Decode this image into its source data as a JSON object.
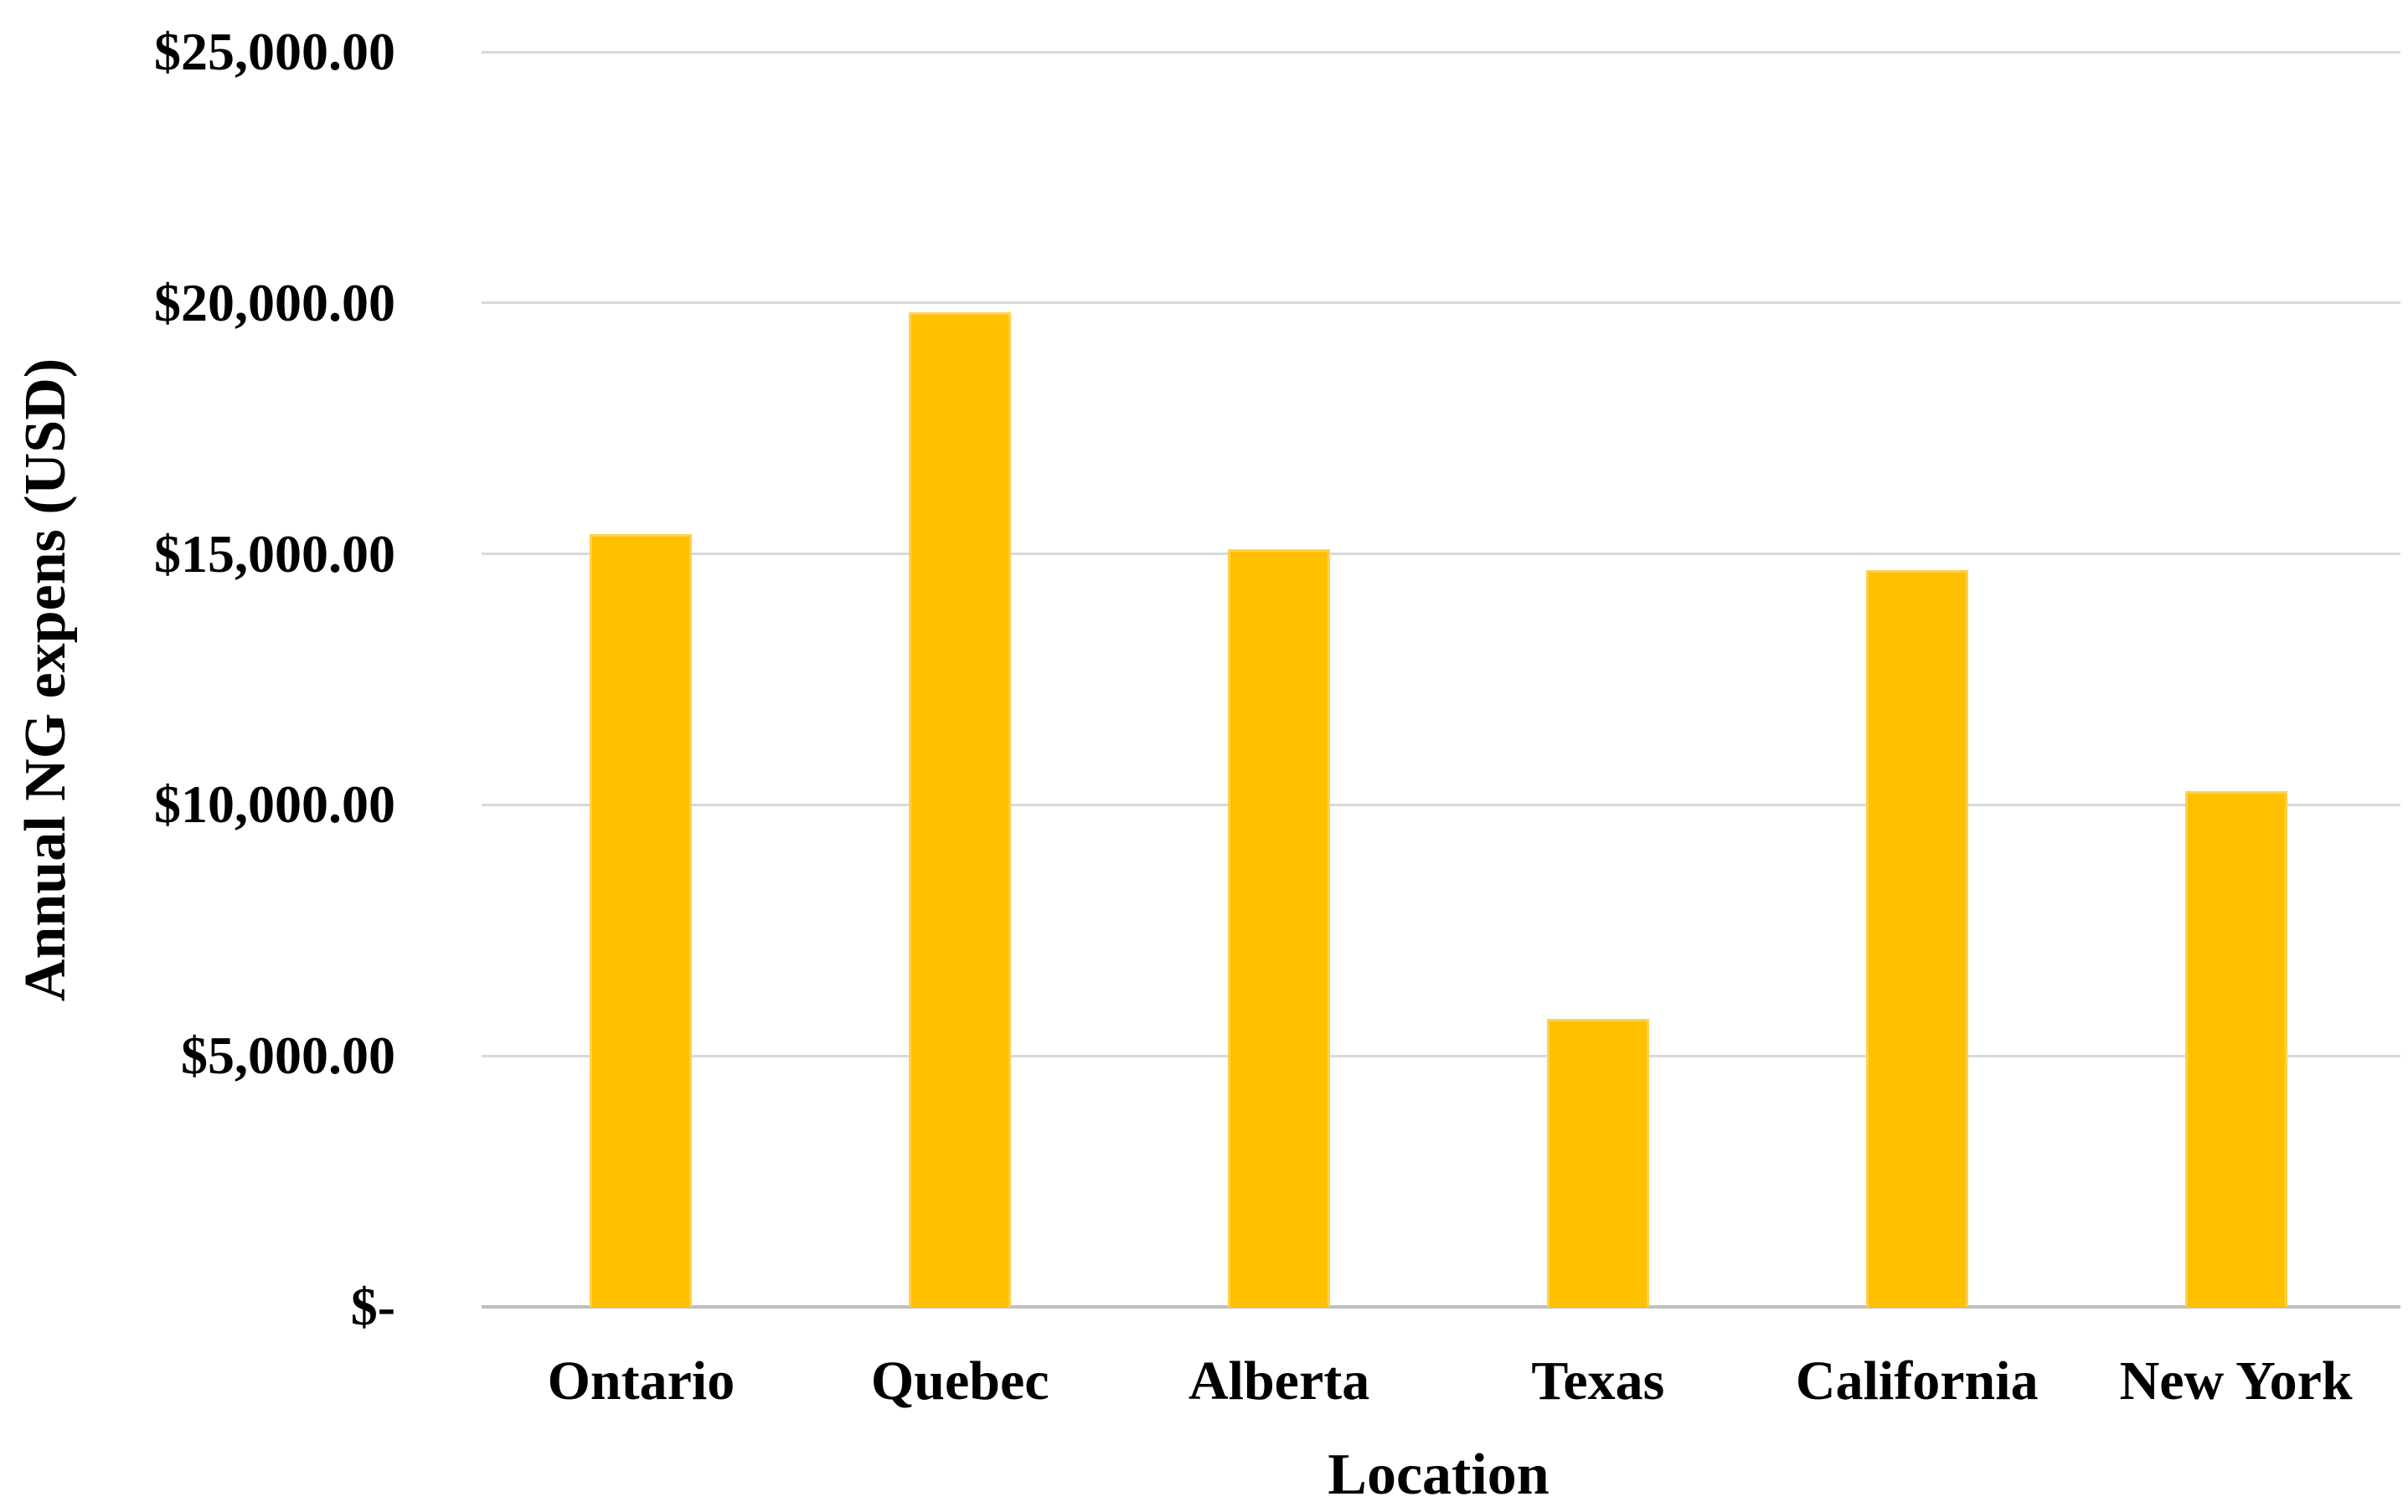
{
  "chart_data": {
    "type": "bar",
    "title": "",
    "categories": [
      "Ontario",
      "Quebec",
      "Alberta",
      "Texas",
      "California",
      "New York"
    ],
    "values": [
      15400,
      19820,
      15100,
      5730,
      14670,
      10280
    ],
    "xlabel": "Location",
    "ylabel": "Annual NG expens (USD)",
    "ylim": [
      0,
      25000
    ],
    "ytick_step": 5000,
    "ytick_labels": [
      "$-",
      "$5,000.00",
      "$10,000.00",
      "$15,000.00",
      "$20,000.00",
      "$25,000.00"
    ],
    "grid": true,
    "legend": "none",
    "colors": {
      "bar_fill": "#FFC000",
      "bar_edge": "#FFD04D",
      "gridline": "#D9D9D9",
      "axis_line": "#BFBFBF",
      "text": "#000000",
      "background": "#FFFFFF"
    }
  }
}
